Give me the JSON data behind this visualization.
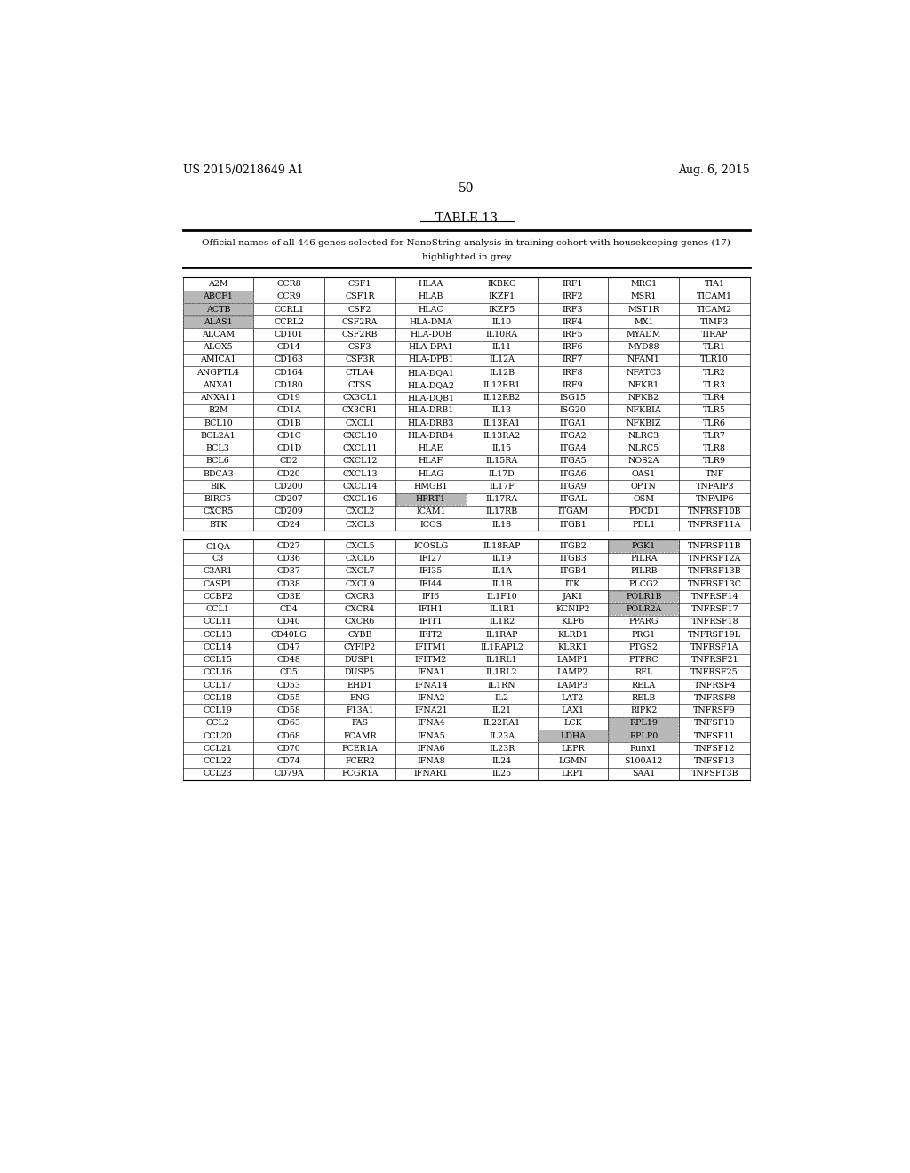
{
  "title": "TABLE 13",
  "subtitle_line1": "Official names of all 446 genes selected for NanoString analysis in training cohort with housekeeping genes (17)",
  "subtitle_line2": "highlighted in grey",
  "header_left": "US 2015/0218649 A1",
  "header_right": "Aug. 6, 2015",
  "page_number": "50",
  "grey_cells": [
    "ABCF1",
    "ACTB",
    "ALAS1",
    "HPRT1",
    "PGK1",
    "POLR1B",
    "POLR2A",
    "LDHA",
    "RPLP0",
    "RPL19"
  ],
  "table_rows_part1": [
    [
      "A2M",
      "CCR8",
      "CSF1",
      "HLAA",
      "IKBKG",
      "IRF1",
      "MRC1",
      "TIA1"
    ],
    [
      "ABCF1",
      "CCR9",
      "CSF1R",
      "HLAB",
      "IKZF1",
      "IRF2",
      "MSR1",
      "TICAM1"
    ],
    [
      "ACTB",
      "CCRL1",
      "CSF2",
      "HLAC",
      "IKZF5",
      "IRF3",
      "MST1R",
      "TICAM2"
    ],
    [
      "ALAS1",
      "CCRL2",
      "CSF2RA",
      "HLA-DMA",
      "IL10",
      "IRF4",
      "MX1",
      "TIMP3"
    ],
    [
      "ALCAM",
      "CD101",
      "CSF2RB",
      "HLA-DOB",
      "IL10RA",
      "IRF5",
      "MYADM",
      "TIRAP"
    ],
    [
      "ALOX5",
      "CD14",
      "CSF3",
      "HLA-DPA1",
      "IL11",
      "IRF6",
      "MYD88",
      "TLR1"
    ],
    [
      "AMICA1",
      "CD163",
      "CSF3R",
      "HLA-DPB1",
      "IL12A",
      "IRF7",
      "NFAM1",
      "TLR10"
    ],
    [
      "ANGPTL4",
      "CD164",
      "CTLA4",
      "HLA-DQA1",
      "IL12B",
      "IRF8",
      "NFATC3",
      "TLR2"
    ],
    [
      "ANXA1",
      "CD180",
      "CTSS",
      "HLA-DQA2",
      "IL12RB1",
      "IRF9",
      "NFKB1",
      "TLR3"
    ],
    [
      "ANXA11",
      "CD19",
      "CX3CL1",
      "HLA-DQB1",
      "IL12RB2",
      "ISG15",
      "NFKB2",
      "TLR4"
    ],
    [
      "B2M",
      "CD1A",
      "CX3CR1",
      "HLA-DRB1",
      "IL13",
      "ISG20",
      "NFKBIA",
      "TLR5"
    ],
    [
      "BCL10",
      "CD1B",
      "CXCL1",
      "HLA-DRB3",
      "IL13RA1",
      "ITGA1",
      "NFKBIZ",
      "TLR6"
    ],
    [
      "BCL2A1",
      "CD1C",
      "CXCL10",
      "HLA-DRB4",
      "IL13RA2",
      "ITGA2",
      "NLRC3",
      "TLR7"
    ],
    [
      "BCL3",
      "CD1D",
      "CXCL11",
      "HLAE",
      "IL15",
      "ITGA4",
      "NLRC5",
      "TLR8"
    ],
    [
      "BCL6",
      "CD2",
      "CXCL12",
      "HLAF",
      "IL15RA",
      "ITGA5",
      "NOS2A",
      "TLR9"
    ],
    [
      "BDCA3",
      "CD20",
      "CXCL13",
      "HLAG",
      "IL17D",
      "ITGA6",
      "OAS1",
      "TNF"
    ],
    [
      "BIK",
      "CD200",
      "CXCL14",
      "HMGB1",
      "IL17F",
      "ITGA9",
      "OPTN",
      "TNFAIP3"
    ],
    [
      "BIRC5",
      "CD207",
      "CXCL16",
      "HPRT1",
      "IL17RA",
      "ITGAL",
      "OSM",
      "TNFAIP6"
    ],
    [
      "CXCR5",
      "CD209",
      "CXCL2",
      "ICAM1",
      "IL17RB",
      "ITGAM",
      "PDCD1",
      "TNFRSF10B"
    ],
    [
      "BTK",
      "CD24",
      "CXCL3",
      "ICOS",
      "IL18",
      "ITGB1",
      "PDL1",
      "TNFRSF11A"
    ]
  ],
  "table_rows_part2": [
    [
      "C1QA",
      "CD27",
      "CXCL5",
      "ICOSLG",
      "IL18RAP",
      "ITGB2",
      "PGK1",
      "TNFRSF11B"
    ],
    [
      "C3",
      "CD36",
      "CXCL6",
      "IFI27",
      "IL19",
      "ITGB3",
      "PILRA",
      "TNFRSF12A"
    ],
    [
      "C3AR1",
      "CD37",
      "CXCL7",
      "IFI35",
      "IL1A",
      "ITGB4",
      "PILRB",
      "TNFRSF13B"
    ],
    [
      "CASP1",
      "CD38",
      "CXCL9",
      "IFI44",
      "IL1B",
      "ITK",
      "PLCG2",
      "TNFRSF13C"
    ],
    [
      "CCBP2",
      "CD3E",
      "CXCR3",
      "IFI6",
      "IL1F10",
      "JAK1",
      "POLR1B",
      "TNFRSF14"
    ],
    [
      "CCL1",
      "CD4",
      "CXCR4",
      "IFIH1",
      "IL1R1",
      "KCNIP2",
      "POLR2A",
      "TNFRSF17"
    ],
    [
      "CCL11",
      "CD40",
      "CXCR6",
      "IFIT1",
      "IL1R2",
      "KLF6",
      "PPARG",
      "TNFRSF18"
    ],
    [
      "CCL13",
      "CD40LG",
      "CYBB",
      "IFIT2",
      "IL1RAP",
      "KLRD1",
      "PRG1",
      "TNFRSF19L"
    ],
    [
      "CCL14",
      "CD47",
      "CYFIP2",
      "IFITM1",
      "IL1RAPL2",
      "KLRK1",
      "PTGS2",
      "TNFRSF1A"
    ],
    [
      "CCL15",
      "CD48",
      "DUSP1",
      "IFITM2",
      "IL1RL1",
      "LAMP1",
      "PTPRC",
      "TNFRSF21"
    ],
    [
      "CCL16",
      "CD5",
      "DUSP5",
      "IFNA1",
      "IL1RL2",
      "LAMP2",
      "REL",
      "TNFRSF25"
    ],
    [
      "CCL17",
      "CD53",
      "EHD1",
      "IFNA14",
      "IL1RN",
      "LAMP3",
      "RELA",
      "TNFRSF4"
    ],
    [
      "CCL18",
      "CD55",
      "ENG",
      "IFNA2",
      "IL2",
      "LAT2",
      "RELB",
      "TNFRSF8"
    ],
    [
      "CCL19",
      "CD58",
      "F13A1",
      "IFNA21",
      "IL21",
      "LAX1",
      "RIPK2",
      "TNFRSF9"
    ],
    [
      "CCL2",
      "CD63",
      "FAS",
      "IFNA4",
      "IL22RA1",
      "LCK",
      "RPL19",
      "TNFSF10"
    ],
    [
      "CCL20",
      "CD68",
      "FCAMR",
      "IFNA5",
      "IL23A",
      "LDHA",
      "RPLP0",
      "TNFSF11"
    ],
    [
      "CCL21",
      "CD70",
      "FCER1A",
      "IFNA6",
      "IL23R",
      "LEPR",
      "Runx1",
      "TNFSF12"
    ],
    [
      "CCL22",
      "CD74",
      "FCER2",
      "IFNA8",
      "IL24",
      "LGMN",
      "S100A12",
      "TNFSF13"
    ],
    [
      "CCL23",
      "CD79A",
      "FCGR1A",
      "IFNAR1",
      "IL25",
      "LRP1",
      "SAA1",
      "TNFSF13B"
    ]
  ]
}
